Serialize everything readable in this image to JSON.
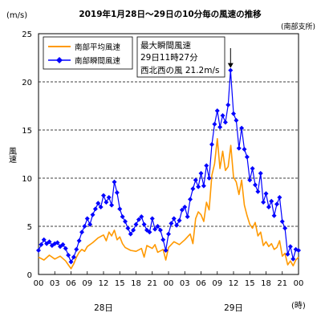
{
  "chart_data": {
    "type": "line",
    "title": "2019年1月28日～29日の10分毎の風速の推移",
    "station_note": "(南部支所)",
    "y_unit": "(m/s)",
    "ylabel": "風速",
    "x_unit": "(時)",
    "ylim": [
      0,
      25
    ],
    "yticks": [
      0,
      5,
      10,
      15,
      20,
      25
    ],
    "xlim": [
      0,
      48
    ],
    "x_tick_hours": [
      0,
      3,
      6,
      9,
      12,
      15,
      18,
      21,
      24,
      27,
      30,
      33,
      36,
      39,
      42,
      45,
      48
    ],
    "x_tick_labels": [
      "00",
      "03",
      "06",
      "09",
      "12",
      "15",
      "18",
      "21",
      "00",
      "03",
      "06",
      "09",
      "12",
      "15",
      "18",
      "21",
      "00"
    ],
    "day_labels": [
      {
        "text": "28日",
        "hour": 12
      },
      {
        "text": "29日",
        "hour": 36
      }
    ],
    "grid": "horizontal dashed",
    "legend_position": "top-left",
    "annotation": {
      "lines": [
        "最大瞬間風速",
        "29日11時27分",
        "西北西の風 21.2m/s"
      ],
      "hour": 35.45,
      "value": 21.2
    },
    "series": [
      {
        "name": "南部平均風速",
        "color": "#ff9900",
        "marker": "none",
        "points": [
          [
            0,
            1.8
          ],
          [
            1,
            1.5
          ],
          [
            2,
            2.0
          ],
          [
            3,
            1.6
          ],
          [
            4,
            1.9
          ],
          [
            5,
            1.4
          ],
          [
            5.5,
            1.0
          ],
          [
            6,
            0.6
          ],
          [
            6.5,
            1.1
          ],
          [
            7,
            1.8
          ],
          [
            7.5,
            2.3
          ],
          [
            8,
            2.6
          ],
          [
            8.5,
            2.4
          ],
          [
            9,
            2.9
          ],
          [
            10,
            3.3
          ],
          [
            11,
            3.8
          ],
          [
            12,
            4.1
          ],
          [
            12.5,
            3.5
          ],
          [
            13,
            4.4
          ],
          [
            13.5,
            4.0
          ],
          [
            14,
            4.6
          ],
          [
            14.5,
            3.6
          ],
          [
            15,
            3.9
          ],
          [
            15.5,
            3.2
          ],
          [
            16,
            2.8
          ],
          [
            17,
            2.5
          ],
          [
            18,
            2.4
          ],
          [
            19,
            2.7
          ],
          [
            19.5,
            1.8
          ],
          [
            20,
            3.0
          ],
          [
            21,
            2.7
          ],
          [
            21.5,
            3.1
          ],
          [
            22,
            2.3
          ],
          [
            23,
            2.6
          ],
          [
            23.5,
            1.5
          ],
          [
            24,
            2.8
          ],
          [
            25,
            3.4
          ],
          [
            26,
            3.1
          ],
          [
            27,
            3.6
          ],
          [
            28,
            4.2
          ],
          [
            28.5,
            3.2
          ],
          [
            29,
            5.8
          ],
          [
            29.5,
            6.5
          ],
          [
            30,
            6.2
          ],
          [
            30.5,
            5.5
          ],
          [
            31,
            7.5
          ],
          [
            31.5,
            6.7
          ],
          [
            32,
            10.3
          ],
          [
            32.5,
            11.5
          ],
          [
            33,
            14.1
          ],
          [
            33.5,
            11.0
          ],
          [
            34,
            12.8
          ],
          [
            34.5,
            10.8
          ],
          [
            35,
            11.2
          ],
          [
            35.5,
            13.4
          ],
          [
            36,
            10.1
          ],
          [
            36.5,
            9.6
          ],
          [
            37,
            8.3
          ],
          [
            37.5,
            9.8
          ],
          [
            38,
            7.2
          ],
          [
            38.5,
            6.1
          ],
          [
            39,
            5.2
          ],
          [
            39.5,
            4.8
          ],
          [
            40,
            5.4
          ],
          [
            40.5,
            4.0
          ],
          [
            41,
            4.4
          ],
          [
            41.5,
            3.0
          ],
          [
            42,
            3.4
          ],
          [
            42.5,
            2.9
          ],
          [
            43,
            3.2
          ],
          [
            43.5,
            2.6
          ],
          [
            44,
            2.8
          ],
          [
            44.5,
            3.5
          ],
          [
            45,
            1.9
          ],
          [
            45.5,
            2.2
          ],
          [
            46,
            1.0
          ],
          [
            46.5,
            1.4
          ],
          [
            47,
            0.9
          ],
          [
            47.5,
            1.5
          ],
          [
            48,
            1.8
          ]
        ]
      },
      {
        "name": "南部瞬間風速",
        "color": "#0000ff",
        "marker": "diamond",
        "points": [
          [
            0,
            2.5
          ],
          [
            0.5,
            3.1
          ],
          [
            1,
            3.6
          ],
          [
            1.5,
            3.2
          ],
          [
            2,
            3.4
          ],
          [
            2.5,
            3.0
          ],
          [
            3,
            3.2
          ],
          [
            3.5,
            3.3
          ],
          [
            4,
            2.9
          ],
          [
            4.5,
            3.1
          ],
          [
            5,
            2.7
          ],
          [
            5.5,
            2.0
          ],
          [
            6,
            1.3
          ],
          [
            6.5,
            1.8
          ],
          [
            7,
            2.6
          ],
          [
            7.5,
            3.5
          ],
          [
            8,
            4.4
          ],
          [
            8.5,
            5.0
          ],
          [
            9,
            5.8
          ],
          [
            9.5,
            5.2
          ],
          [
            10,
            6.2
          ],
          [
            10.5,
            6.8
          ],
          [
            11,
            7.4
          ],
          [
            11.5,
            7.0
          ],
          [
            12,
            8.2
          ],
          [
            12.5,
            7.5
          ],
          [
            13,
            8.0
          ],
          [
            13.5,
            7.2
          ],
          [
            14,
            9.6
          ],
          [
            14.5,
            8.5
          ],
          [
            15,
            6.8
          ],
          [
            15.5,
            6.0
          ],
          [
            16,
            5.5
          ],
          [
            16.5,
            4.8
          ],
          [
            17,
            4.2
          ],
          [
            17.5,
            4.6
          ],
          [
            18,
            5.2
          ],
          [
            18.5,
            5.7
          ],
          [
            19,
            6.0
          ],
          [
            19.5,
            5.2
          ],
          [
            20,
            4.6
          ],
          [
            20.5,
            4.4
          ],
          [
            21,
            5.8
          ],
          [
            21.5,
            4.7
          ],
          [
            22,
            5.0
          ],
          [
            22.5,
            4.6
          ],
          [
            23,
            3.6
          ],
          [
            23.5,
            2.5
          ],
          [
            24,
            4.2
          ],
          [
            24.5,
            5.3
          ],
          [
            25,
            5.8
          ],
          [
            25.5,
            5.1
          ],
          [
            26,
            5.6
          ],
          [
            26.5,
            6.7
          ],
          [
            27,
            7.0
          ],
          [
            27.5,
            6.0
          ],
          [
            28,
            7.8
          ],
          [
            28.5,
            8.9
          ],
          [
            29,
            9.8
          ],
          [
            29.5,
            9.1
          ],
          [
            30,
            10.5
          ],
          [
            30.5,
            9.2
          ],
          [
            31,
            11.3
          ],
          [
            31.5,
            10.0
          ],
          [
            32,
            13.5
          ],
          [
            32.5,
            15.6
          ],
          [
            33,
            17.0
          ],
          [
            33.5,
            15.3
          ],
          [
            34,
            16.5
          ],
          [
            34.5,
            15.8
          ],
          [
            35,
            17.6
          ],
          [
            35.45,
            21.2
          ],
          [
            36,
            16.7
          ],
          [
            36.5,
            16.0
          ],
          [
            37,
            13.1
          ],
          [
            37.5,
            15.2
          ],
          [
            38,
            13.0
          ],
          [
            38.5,
            12.2
          ],
          [
            39,
            9.8
          ],
          [
            39.5,
            11.0
          ],
          [
            40,
            9.3
          ],
          [
            40.5,
            8.6
          ],
          [
            41,
            10.5
          ],
          [
            41.5,
            7.5
          ],
          [
            42,
            8.4
          ],
          [
            42.5,
            7.0
          ],
          [
            43,
            7.6
          ],
          [
            43.5,
            6.1
          ],
          [
            44,
            7.3
          ],
          [
            44.5,
            8.0
          ],
          [
            45,
            5.5
          ],
          [
            45.5,
            4.8
          ],
          [
            46,
            2.1
          ],
          [
            46.5,
            2.9
          ],
          [
            47,
            1.6
          ],
          [
            47.5,
            2.6
          ],
          [
            48,
            2.5
          ]
        ]
      }
    ]
  }
}
